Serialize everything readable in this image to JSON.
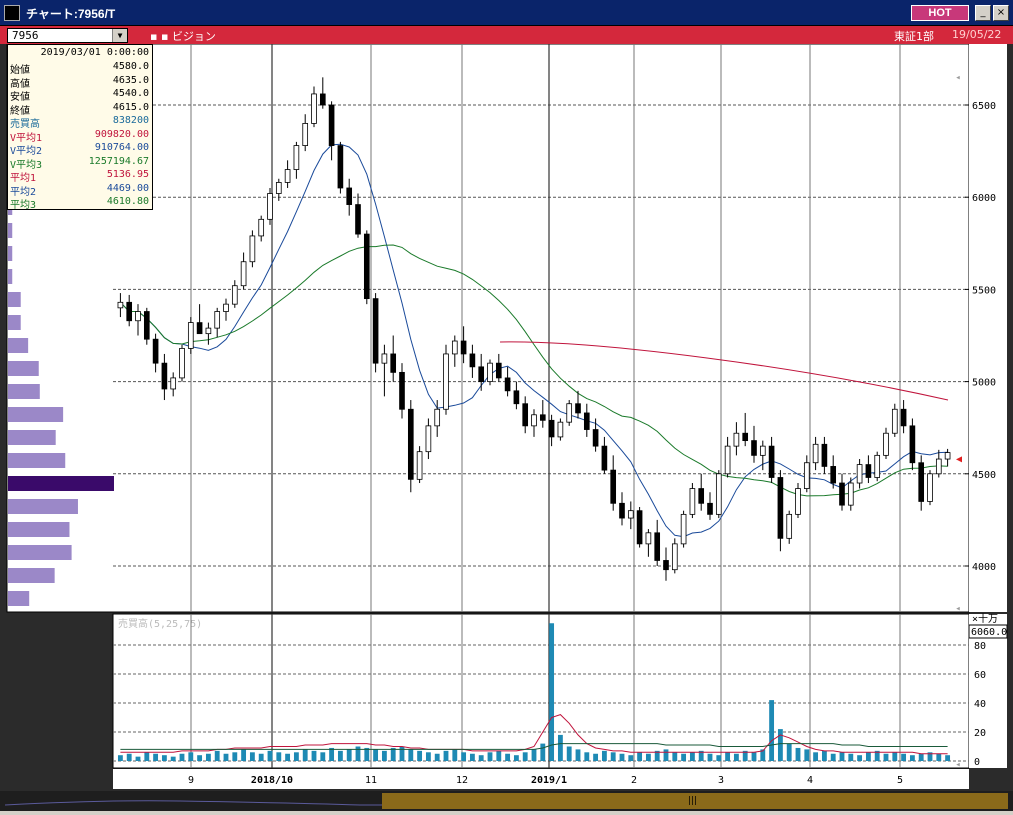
{
  "window": {
    "title": "チャート:7956/T",
    "hot_label": "HOT",
    "minimize_label": "_",
    "close_label": "×"
  },
  "toolbar": {
    "code": "7956",
    "position_label": "▪ ▪ ビジョン",
    "market": "東証1部",
    "date": "19/05/22"
  },
  "info": {
    "date": "2019/03/01  0:00:00",
    "rows": [
      {
        "label": "始値",
        "value": "4580.0",
        "color": "#000000"
      },
      {
        "label": "高値",
        "value": "4635.0",
        "color": "#000000"
      },
      {
        "label": "安値",
        "value": "4540.0",
        "color": "#000000"
      },
      {
        "label": "終値",
        "value": "4615.0",
        "color": "#000000"
      },
      {
        "label": "売買高",
        "value": "838200",
        "color": "#1a6a9a"
      },
      {
        "label": "V平均1",
        "value": "909820.00",
        "color": "#c0143c"
      },
      {
        "label": "V平均2",
        "value": "910764.00",
        "color": "#1a4a9a"
      },
      {
        "label": "V平均3",
        "value": "1257194.67",
        "color": "#1a7a2a"
      },
      {
        "label": "平均1",
        "value": "5136.95",
        "color": "#c0143c"
      },
      {
        "label": "平均2",
        "value": "4469.00",
        "color": "#1a4a9a"
      },
      {
        "label": "平均3",
        "value": "4610.80",
        "color": "#1a7a2a"
      }
    ]
  },
  "price_axis": {
    "labels": [
      "6500",
      "6000",
      "5500",
      "5000",
      "4500",
      "4000"
    ]
  },
  "volume_axis": {
    "unit": "×十万",
    "max_box": "6060.0",
    "labels": [
      "80",
      "60",
      "40",
      "20",
      "0"
    ]
  },
  "volume_title": "売買高(5,25,75)",
  "x_axis": {
    "labels": [
      "9",
      "2018/10",
      "11",
      "12",
      "2019/1",
      "2",
      "3",
      "4",
      "5"
    ]
  },
  "colors": {
    "ma1": "#c0143c",
    "ma2": "#1a4a9a",
    "ma3": "#1a7a2a",
    "volume_bar": "#1e8ab4",
    "profile": "#9b88c8",
    "profile_hi": "#3a0a6a"
  },
  "chart_data": {
    "type": "candlestick",
    "ylim": [
      3800,
      6700
    ],
    "x_ticks": [
      "9",
      "2018/10",
      "11",
      "12",
      "2019/1",
      "2",
      "3",
      "4",
      "5"
    ],
    "ma1_short": {
      "start": 5215,
      "end": 4900
    },
    "candles": [
      [
        5400,
        5480,
        5350,
        5430
      ],
      [
        5430,
        5470,
        5300,
        5330
      ],
      [
        5330,
        5420,
        5250,
        5380
      ],
      [
        5380,
        5400,
        5200,
        5230
      ],
      [
        5230,
        5260,
        5050,
        5100
      ],
      [
        5100,
        5150,
        4900,
        4960
      ],
      [
        4960,
        5050,
        4920,
        5020
      ],
      [
        5020,
        5200,
        5000,
        5180
      ],
      [
        5180,
        5350,
        5150,
        5320
      ],
      [
        5320,
        5420,
        5280,
        5260
      ],
      [
        5260,
        5320,
        5200,
        5290
      ],
      [
        5290,
        5400,
        5240,
        5380
      ],
      [
        5380,
        5450,
        5330,
        5420
      ],
      [
        5420,
        5550,
        5400,
        5520
      ],
      [
        5520,
        5700,
        5500,
        5650
      ],
      [
        5650,
        5820,
        5620,
        5790
      ],
      [
        5790,
        5900,
        5760,
        5880
      ],
      [
        5880,
        6050,
        5850,
        6020
      ],
      [
        6020,
        6100,
        5980,
        6080
      ],
      [
        6080,
        6200,
        6050,
        6150
      ],
      [
        6150,
        6300,
        6100,
        6280
      ],
      [
        6280,
        6450,
        6250,
        6400
      ],
      [
        6400,
        6600,
        6380,
        6560
      ],
      [
        6560,
        6650,
        6480,
        6500
      ],
      [
        6500,
        6520,
        6200,
        6280
      ],
      [
        6280,
        6300,
        6020,
        6050
      ],
      [
        6050,
        6100,
        5900,
        5960
      ],
      [
        5960,
        6020,
        5780,
        5800
      ],
      [
        5800,
        5820,
        5420,
        5450
      ],
      [
        5450,
        5480,
        5050,
        5100
      ],
      [
        5100,
        5200,
        4920,
        5150
      ],
      [
        5150,
        5250,
        5000,
        5050
      ],
      [
        5050,
        5100,
        4800,
        4850
      ],
      [
        4850,
        4900,
        4400,
        4470
      ],
      [
        4470,
        4650,
        4450,
        4620
      ],
      [
        4620,
        4800,
        4580,
        4760
      ],
      [
        4760,
        4900,
        4700,
        4850
      ],
      [
        4850,
        5200,
        4820,
        5150
      ],
      [
        5150,
        5250,
        5080,
        5220
      ],
      [
        5220,
        5300,
        5100,
        5150
      ],
      [
        5150,
        5200,
        5020,
        5080
      ],
      [
        5080,
        5150,
        4950,
        5000
      ],
      [
        5000,
        5120,
        4980,
        5100
      ],
      [
        5100,
        5150,
        5000,
        5020
      ],
      [
        5020,
        5080,
        4920,
        4950
      ],
      [
        4950,
        5000,
        4850,
        4880
      ],
      [
        4880,
        4920,
        4720,
        4760
      ],
      [
        4760,
        4850,
        4700,
        4820
      ],
      [
        4820,
        4900,
        4750,
        4790
      ],
      [
        4790,
        4820,
        4650,
        4700
      ],
      [
        4700,
        4800,
        4680,
        4780
      ],
      [
        4780,
        4900,
        4760,
        4880
      ],
      [
        4880,
        4950,
        4800,
        4830
      ],
      [
        4830,
        4880,
        4700,
        4740
      ],
      [
        4740,
        4800,
        4620,
        4650
      ],
      [
        4650,
        4700,
        4500,
        4520
      ],
      [
        4520,
        4600,
        4300,
        4340
      ],
      [
        4340,
        4400,
        4220,
        4260
      ],
      [
        4260,
        4350,
        4200,
        4300
      ],
      [
        4300,
        4320,
        4100,
        4120
      ],
      [
        4120,
        4200,
        4050,
        4180
      ],
      [
        4180,
        4250,
        4000,
        4030
      ],
      [
        4030,
        4100,
        3920,
        3980
      ],
      [
        3980,
        4150,
        3960,
        4120
      ],
      [
        4120,
        4300,
        4100,
        4280
      ],
      [
        4280,
        4450,
        4260,
        4420
      ],
      [
        4420,
        4500,
        4300,
        4340
      ],
      [
        4340,
        4400,
        4250,
        4280
      ],
      [
        4280,
        4520,
        4260,
        4500
      ],
      [
        4500,
        4700,
        4480,
        4650
      ],
      [
        4650,
        4780,
        4600,
        4720
      ],
      [
        4720,
        4830,
        4650,
        4680
      ],
      [
        4680,
        4760,
        4560,
        4600
      ],
      [
        4600,
        4680,
        4520,
        4650
      ],
      [
        4650,
        4700,
        4450,
        4480
      ],
      [
        4480,
        4520,
        4080,
        4150
      ],
      [
        4150,
        4300,
        4120,
        4280
      ],
      [
        4280,
        4450,
        4260,
        4420
      ],
      [
        4420,
        4600,
        4400,
        4560
      ],
      [
        4560,
        4700,
        4520,
        4660
      ],
      [
        4660,
        4700,
        4500,
        4540
      ],
      [
        4540,
        4600,
        4420,
        4450
      ],
      [
        4450,
        4500,
        4300,
        4330
      ],
      [
        4330,
        4480,
        4300,
        4450
      ],
      [
        4450,
        4580,
        4420,
        4550
      ],
      [
        4550,
        4600,
        4450,
        4480
      ],
      [
        4480,
        4620,
        4460,
        4600
      ],
      [
        4600,
        4750,
        4580,
        4720
      ],
      [
        4720,
        4880,
        4700,
        4850
      ],
      [
        4850,
        4900,
        4720,
        4760
      ],
      [
        4760,
        4800,
        4520,
        4560
      ],
      [
        4560,
        4600,
        4300,
        4350
      ],
      [
        4350,
        4520,
        4330,
        4500
      ],
      [
        4500,
        4630,
        4480,
        4580
      ],
      [
        4580,
        4635,
        4540,
        4615
      ]
    ],
    "volume": [
      4,
      5,
      3,
      6,
      5,
      4,
      3,
      5,
      6,
      4,
      5,
      7,
      5,
      6,
      8,
      6,
      5,
      7,
      6,
      5,
      6,
      8,
      7,
      6,
      9,
      7,
      8,
      10,
      9,
      8,
      7,
      9,
      10,
      8,
      7,
      6,
      5,
      7,
      8,
      6,
      5,
      4,
      6,
      7,
      5,
      4,
      6,
      8,
      12,
      95,
      18,
      10,
      8,
      6,
      5,
      7,
      6,
      5,
      4,
      6,
      5,
      7,
      8,
      6,
      5,
      6,
      7,
      5,
      4,
      6,
      5,
      7,
      6,
      8,
      42,
      22,
      12,
      9,
      8,
      6,
      7,
      5,
      6,
      5,
      4,
      6,
      7,
      5,
      6,
      5,
      4,
      5,
      6,
      5,
      4
    ],
    "vol_ma1": [
      6,
      6,
      6,
      6,
      6,
      6,
      6,
      7,
      7,
      7,
      7,
      8,
      8,
      9,
      9,
      9,
      9,
      10,
      10,
      10,
      10,
      11,
      11,
      11,
      12,
      12,
      12,
      12,
      12,
      11,
      11,
      10,
      10,
      9,
      9,
      8,
      8,
      8,
      8,
      8,
      7,
      7,
      7,
      7,
      7,
      7,
      8,
      10,
      20,
      30,
      32,
      26,
      18,
      12,
      9,
      8,
      7,
      7,
      6,
      6,
      6,
      6,
      6,
      6,
      6,
      6,
      6,
      6,
      6,
      6,
      6,
      6,
      6,
      7,
      14,
      18,
      16,
      13,
      10,
      8,
      7,
      7,
      6,
      6,
      6,
      6,
      6,
      6,
      6,
      6,
      6,
      5,
      5,
      5,
      5
    ],
    "vol_ma2": [
      8,
      8,
      8,
      8,
      8,
      8,
      8,
      8,
      8,
      8,
      8,
      8,
      8,
      8,
      8,
      8,
      8,
      8,
      8,
      8,
      8,
      8,
      8,
      8,
      8,
      8,
      8,
      8,
      8,
      8,
      8,
      8,
      8,
      8,
      8,
      8,
      8,
      8,
      8,
      8,
      8,
      8,
      8,
      8,
      8,
      8,
      8,
      8,
      9,
      11,
      12,
      12,
      12,
      12,
      12,
      12,
      12,
      12,
      12,
      12,
      12,
      12,
      11,
      11,
      11,
      11,
      11,
      11,
      10,
      10,
      10,
      10,
      10,
      10,
      11,
      12,
      12,
      12,
      12,
      12,
      12,
      12,
      11,
      11,
      11,
      10,
      10,
      10,
      10,
      10,
      10,
      10,
      10,
      10,
      10
    ],
    "price_profile": [
      4,
      4,
      4,
      4,
      12,
      12,
      19,
      29,
      30,
      52,
      45,
      54,
      100,
      66,
      58,
      60,
      44,
      20
    ]
  }
}
